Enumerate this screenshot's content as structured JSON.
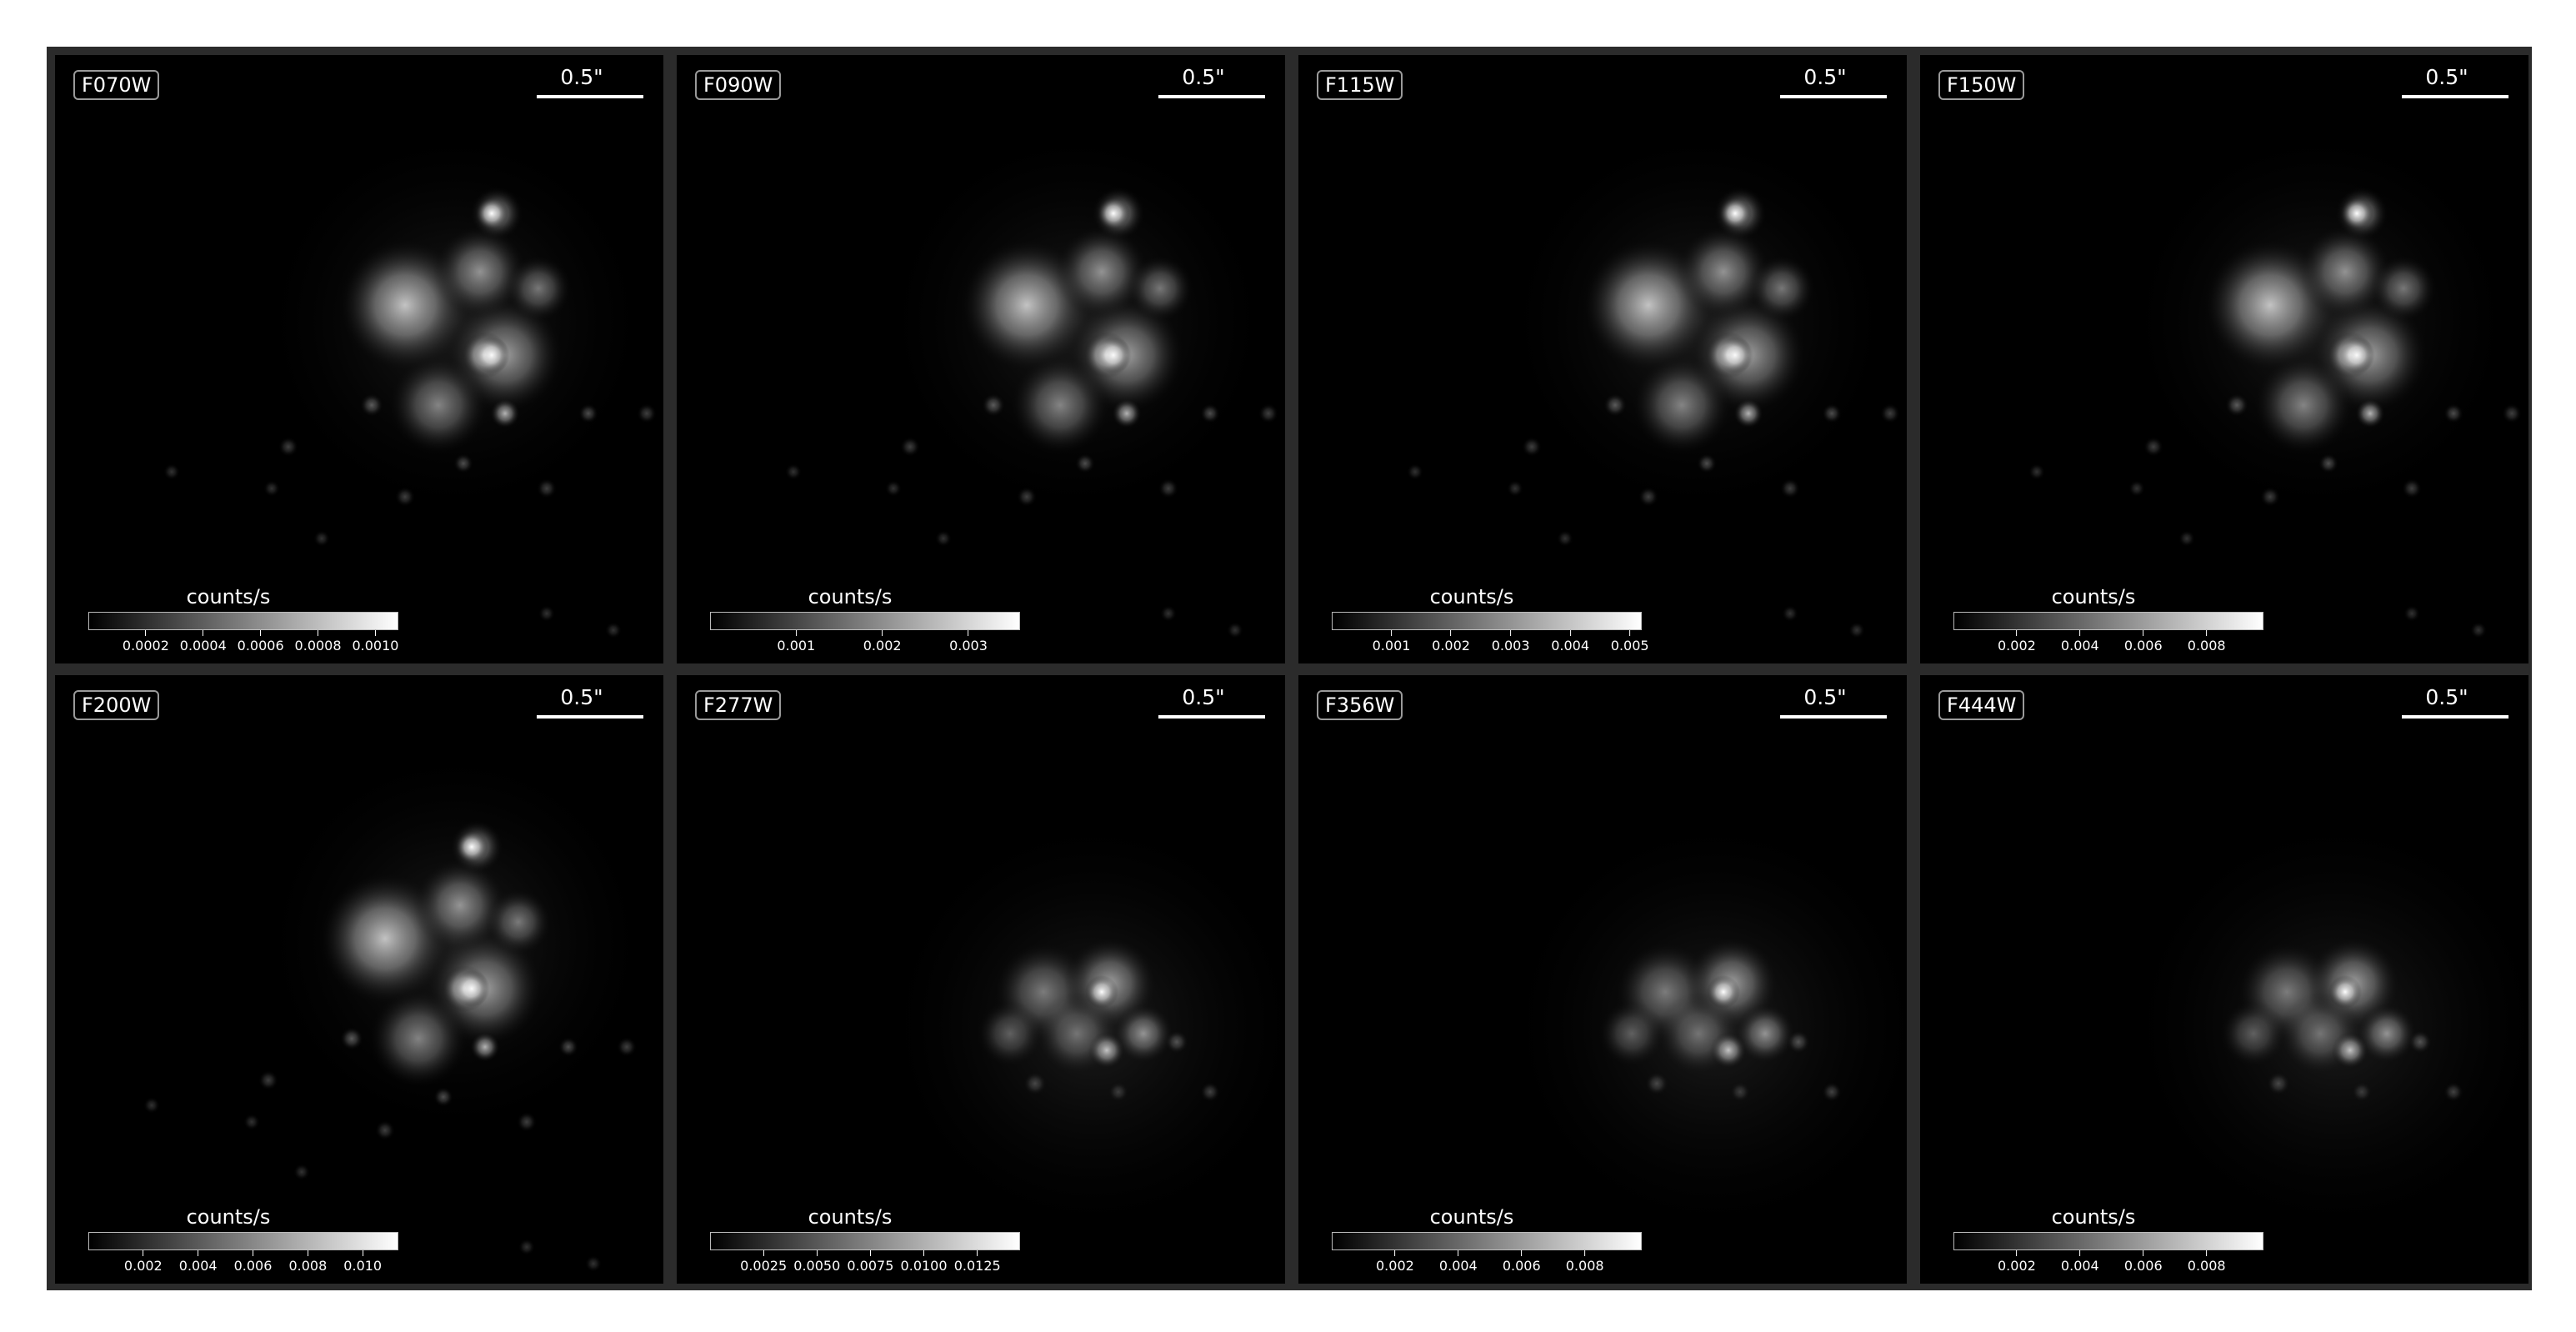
{
  "colorbar_label": "counts/s",
  "scalebar_label": "0.5\"",
  "panels": [
    {
      "band": "F070W",
      "vmax": 0.00108,
      "ticks": [
        {
          "v": 0.0002,
          "label": "0.0002"
        },
        {
          "v": 0.0004,
          "label": "0.0004"
        },
        {
          "v": 0.0006,
          "label": "0.0006"
        },
        {
          "v": 0.0008,
          "label": "0.0008"
        },
        {
          "v": 0.001,
          "label": "0.0010"
        }
      ]
    },
    {
      "band": "F090W",
      "vmax": 0.0036,
      "ticks": [
        {
          "v": 0.001,
          "label": "0.001"
        },
        {
          "v": 0.002,
          "label": "0.002"
        },
        {
          "v": 0.003,
          "label": "0.003"
        }
      ]
    },
    {
      "band": "F115W",
      "vmax": 0.0052,
      "ticks": [
        {
          "v": 0.001,
          "label": "0.001"
        },
        {
          "v": 0.002,
          "label": "0.002"
        },
        {
          "v": 0.003,
          "label": "0.003"
        },
        {
          "v": 0.004,
          "label": "0.004"
        },
        {
          "v": 0.005,
          "label": "0.005"
        }
      ]
    },
    {
      "band": "F150W",
      "vmax": 0.0098,
      "ticks": [
        {
          "v": 0.002,
          "label": "0.002"
        },
        {
          "v": 0.004,
          "label": "0.004"
        },
        {
          "v": 0.006,
          "label": "0.006"
        },
        {
          "v": 0.008,
          "label": "0.008"
        }
      ]
    },
    {
      "band": "F200W",
      "vmax": 0.0113,
      "ticks": [
        {
          "v": 0.002,
          "label": "0.002"
        },
        {
          "v": 0.004,
          "label": "0.004"
        },
        {
          "v": 0.006,
          "label": "0.006"
        },
        {
          "v": 0.008,
          "label": "0.008"
        },
        {
          "v": 0.01,
          "label": "0.010"
        }
      ]
    },
    {
      "band": "F277W",
      "vmax": 0.0145,
      "ticks": [
        {
          "v": 0.0025,
          "label": "0.0025"
        },
        {
          "v": 0.005,
          "label": "0.0050"
        },
        {
          "v": 0.0075,
          "label": "0.0075"
        },
        {
          "v": 0.01,
          "label": "0.0100"
        },
        {
          "v": 0.0125,
          "label": "0.0125"
        }
      ]
    },
    {
      "band": "F356W",
      "vmax": 0.0098,
      "ticks": [
        {
          "v": 0.002,
          "label": "0.002"
        },
        {
          "v": 0.004,
          "label": "0.004"
        },
        {
          "v": 0.006,
          "label": "0.006"
        },
        {
          "v": 0.008,
          "label": "0.008"
        }
      ]
    },
    {
      "band": "F444W",
      "vmax": 0.0098,
      "ticks": [
        {
          "v": 0.002,
          "label": "0.002"
        },
        {
          "v": 0.004,
          "label": "0.004"
        },
        {
          "v": 0.006,
          "label": "0.006"
        },
        {
          "v": 0.008,
          "label": "0.008"
        }
      ]
    }
  ]
}
